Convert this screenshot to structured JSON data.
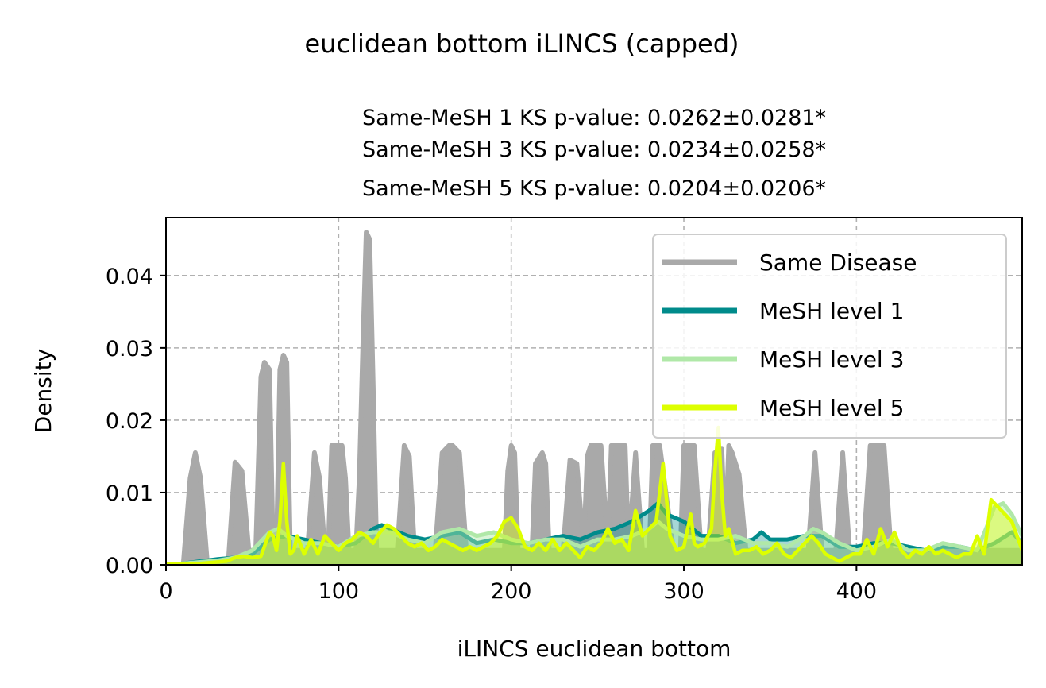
{
  "figure": {
    "suptitle": "euclidean bottom iLINCS (capped)",
    "subtitle_lines": [
      "Same-MeSH 1 KS p-value: 0.0262±0.0281*",
      "Same-MeSH 3 KS p-value: 0.0234±0.0258*",
      "Same-MeSH 5 KS p-value: 0.0204±0.0206*"
    ]
  },
  "chart_data": {
    "type": "area",
    "title": "euclidean bottom iLINCS (capped)",
    "xlabel": "iLINCS euclidean bottom",
    "ylabel": "Density",
    "xlim": [
      0,
      496
    ],
    "ylim": [
      0,
      0.048
    ],
    "xticks": [
      0,
      100,
      200,
      300,
      400
    ],
    "xtick_labels": [
      "0",
      "100",
      "200",
      "300",
      "400"
    ],
    "yticks": [
      0,
      0.01,
      0.02,
      0.03,
      0.04
    ],
    "ytick_labels": [
      "0.00",
      "0.01",
      "0.02",
      "0.03",
      "0.04"
    ],
    "grid": true,
    "legend_position": "upper right",
    "series": [
      {
        "name": "Same Disease",
        "color": "#a9a9a9",
        "x": [
          0,
          10,
          14,
          17,
          20,
          24,
          36,
          40,
          44,
          48,
          52,
          55,
          57,
          60,
          62,
          64,
          66,
          68,
          70,
          72,
          82,
          86,
          89,
          92,
          94,
          96,
          102,
          104,
          106,
          110,
          112,
          114,
          116,
          118,
          120,
          122,
          134,
          138,
          141,
          144,
          150,
          156,
          160,
          164,
          166,
          170,
          174,
          178,
          196,
          198,
          200,
          202,
          204,
          206,
          212,
          214,
          218,
          220,
          222,
          230,
          234,
          238,
          242,
          244,
          246,
          248,
          252,
          256,
          258,
          262,
          266,
          268,
          272,
          276,
          280,
          282,
          286,
          294,
          298,
          300,
          302,
          306,
          310,
          314,
          318,
          322,
          324,
          326,
          328,
          332,
          336,
          372,
          376,
          380,
          388,
          392,
          396,
          404,
          408,
          412,
          416,
          420,
          496
        ],
        "y": [
          0,
          0,
          0.012,
          0.0155,
          0.012,
          0,
          0,
          0.0142,
          0.013,
          0.002,
          0.002,
          0.026,
          0.028,
          0.027,
          0.002,
          0.002,
          0.027,
          0.029,
          0.028,
          0.002,
          0.002,
          0.0155,
          0.012,
          0.002,
          0.002,
          0.0165,
          0.0165,
          0.012,
          0.002,
          0.002,
          0.012,
          0.03,
          0.046,
          0.045,
          0.025,
          0.002,
          0.002,
          0.0165,
          0.015,
          0.002,
          0.002,
          0.002,
          0.0155,
          0.0165,
          0.0165,
          0.0155,
          0.002,
          0.002,
          0.002,
          0.013,
          0.0165,
          0.0155,
          0.002,
          0.002,
          0.002,
          0.014,
          0.0155,
          0.014,
          0.002,
          0.002,
          0.0145,
          0.014,
          0.002,
          0.015,
          0.0165,
          0.0165,
          0.0165,
          0.002,
          0.0165,
          0.0165,
          0.0165,
          0.002,
          0.0155,
          0.002,
          0.002,
          0.0165,
          0.0165,
          0.002,
          0.002,
          0.0165,
          0.0165,
          0.0165,
          0.002,
          0.002,
          0.0155,
          0.016,
          0.003,
          0.0165,
          0.0155,
          0.0125,
          0.002,
          0.002,
          0.0155,
          0.002,
          0.002,
          0.0155,
          0.002,
          0.002,
          0.0165,
          0.0165,
          0.0165,
          0.002,
          0.002
        ]
      },
      {
        "name": "MeSH level 1",
        "color": "#008b8b",
        "x": [
          0,
          10,
          20,
          30,
          40,
          50,
          60,
          70,
          80,
          90,
          100,
          110,
          115,
          120,
          125,
          130,
          140,
          150,
          160,
          170,
          180,
          190,
          200,
          210,
          220,
          230,
          240,
          250,
          260,
          270,
          280,
          285,
          290,
          300,
          310,
          320,
          330,
          340,
          345,
          350,
          360,
          370,
          380,
          390,
          400,
          410,
          420,
          430,
          440,
          450,
          460,
          470,
          480,
          490,
          496
        ],
        "y": [
          0,
          0.0002,
          0.0005,
          0.0008,
          0.001,
          0.0015,
          0.0035,
          0.004,
          0.0035,
          0.003,
          0.0025,
          0.003,
          0.004,
          0.005,
          0.0055,
          0.005,
          0.004,
          0.0035,
          0.004,
          0.0045,
          0.003,
          0.0035,
          0.003,
          0.003,
          0.0035,
          0.004,
          0.0035,
          0.0045,
          0.005,
          0.006,
          0.0075,
          0.0085,
          0.007,
          0.006,
          0.004,
          0.004,
          0.003,
          0.0035,
          0.0045,
          0.0035,
          0.0035,
          0.004,
          0.004,
          0.0025,
          0.0025,
          0.003,
          0.003,
          0.0025,
          0.002,
          0.0025,
          0.0025,
          0.002,
          0.003,
          0.0045,
          0.003
        ]
      },
      {
        "name": "MeSH level 3",
        "color": "#b0e8a8",
        "x": [
          0,
          10,
          20,
          30,
          40,
          50,
          60,
          65,
          70,
          80,
          90,
          100,
          110,
          120,
          130,
          140,
          150,
          160,
          170,
          180,
          190,
          200,
          210,
          220,
          230,
          240,
          250,
          260,
          270,
          280,
          285,
          290,
          300,
          310,
          320,
          330,
          340,
          350,
          360,
          370,
          375,
          380,
          390,
          400,
          410,
          420,
          430,
          440,
          450,
          460,
          470,
          480,
          485,
          490,
          496
        ],
        "y": [
          0,
          0.0002,
          0.0004,
          0.0006,
          0.001,
          0.002,
          0.0045,
          0.005,
          0.004,
          0.003,
          0.003,
          0.0025,
          0.004,
          0.0045,
          0.0045,
          0.0035,
          0.003,
          0.0045,
          0.005,
          0.004,
          0.0045,
          0.0035,
          0.003,
          0.0035,
          0.0035,
          0.0025,
          0.0035,
          0.0035,
          0.004,
          0.005,
          0.006,
          0.005,
          0.004,
          0.0035,
          0.0035,
          0.004,
          0.003,
          0.003,
          0.0025,
          0.004,
          0.005,
          0.0045,
          0.003,
          0.002,
          0.0025,
          0.0035,
          0.002,
          0.002,
          0.003,
          0.0025,
          0.002,
          0.008,
          0.0085,
          0.007,
          0.004
        ]
      },
      {
        "name": "MeSH level 5",
        "color": "#ddff00",
        "x": [
          0,
          20,
          35,
          40,
          45,
          50,
          55,
          60,
          62,
          64,
          66,
          68,
          70,
          72,
          74,
          76,
          80,
          84,
          88,
          92,
          96,
          100,
          104,
          108,
          112,
          116,
          120,
          124,
          128,
          132,
          136,
          140,
          144,
          148,
          152,
          156,
          160,
          164,
          168,
          172,
          176,
          180,
          184,
          188,
          192,
          196,
          200,
          204,
          208,
          212,
          216,
          220,
          224,
          228,
          232,
          236,
          240,
          244,
          248,
          252,
          256,
          260,
          264,
          268,
          272,
          276,
          280,
          284,
          288,
          290,
          292,
          296,
          300,
          304,
          306,
          308,
          312,
          316,
          318,
          320,
          322,
          324,
          326,
          330,
          334,
          338,
          342,
          346,
          350,
          354,
          358,
          362,
          366,
          370,
          374,
          378,
          382,
          386,
          390,
          394,
          398,
          402,
          406,
          410,
          414,
          418,
          422,
          426,
          430,
          434,
          438,
          442,
          446,
          450,
          454,
          458,
          462,
          466,
          470,
          474,
          478,
          482,
          486,
          490,
          496
        ],
        "y": [
          0.0002,
          0.0002,
          0.0005,
          0.001,
          0.0012,
          0.001,
          0.0012,
          0.0045,
          0.004,
          0.002,
          0.006,
          0.014,
          0.006,
          0.0015,
          0.002,
          0.004,
          0.0015,
          0.0035,
          0.0015,
          0.004,
          0.003,
          0.002,
          0.003,
          0.0035,
          0.0045,
          0.004,
          0.003,
          0.0045,
          0.0055,
          0.005,
          0.004,
          0.003,
          0.0025,
          0.003,
          0.002,
          0.0025,
          0.0035,
          0.003,
          0.0025,
          0.002,
          0.0025,
          0.002,
          0.0025,
          0.003,
          0.004,
          0.006,
          0.0065,
          0.005,
          0.0025,
          0.002,
          0.003,
          0.002,
          0.0035,
          0.002,
          0.003,
          0.002,
          0.001,
          0.0025,
          0.002,
          0.003,
          0.005,
          0.003,
          0.0035,
          0.002,
          0.0075,
          0.004,
          0.005,
          0.006,
          0.014,
          0.009,
          0.004,
          0.002,
          0.0025,
          0.007,
          0.003,
          0.0025,
          0.003,
          0.005,
          0.013,
          0.019,
          0.01,
          0.004,
          0.005,
          0.0015,
          0.002,
          0.002,
          0.0025,
          0.0015,
          0.002,
          0.003,
          0.0015,
          0.001,
          0.002,
          0.003,
          0.004,
          0.003,
          0.0015,
          0.001,
          0.0005,
          0.001,
          0.0015,
          0.0015,
          0.0035,
          0.0015,
          0.005,
          0.0025,
          0.0045,
          0.002,
          0.001,
          0.002,
          0.0015,
          0.0025,
          0.0015,
          0.002,
          0.0015,
          0.001,
          0.0015,
          0.0015,
          0.004,
          0.0015,
          0.009,
          0.008,
          0.007,
          0.006,
          0.002
        ]
      }
    ]
  }
}
